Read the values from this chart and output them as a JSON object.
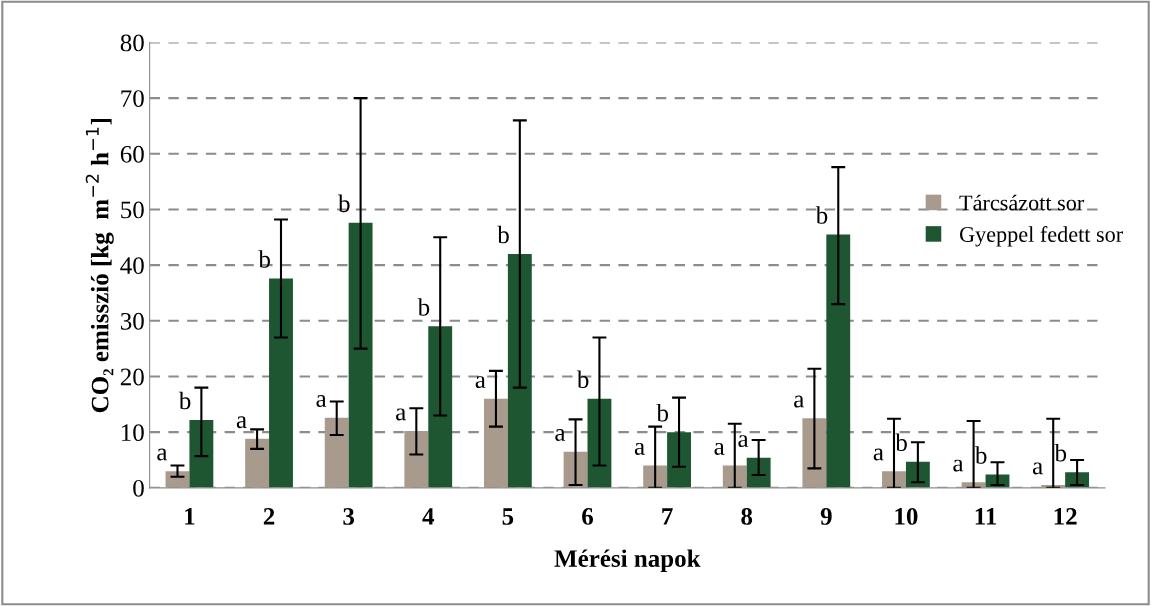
{
  "chart_data": {
    "type": "bar",
    "xlabel": "Mérési napok",
    "ylabel": "CO₂ emisszió [kg  m$^{−2}$ h$^{−1}$]",
    "categories": [
      "1",
      "2",
      "3",
      "4",
      "5",
      "6",
      "7",
      "8",
      "9",
      "10",
      "11",
      "12"
    ],
    "series": [
      {
        "name": "Tárcsázott sor",
        "color": "#a89a8c",
        "values": [
          3,
          8.8,
          12.6,
          10.2,
          16,
          6.5,
          4,
          4,
          12.5,
          3,
          1,
          0.5
        ],
        "errors": [
          [
            2,
            4
          ],
          [
            7,
            10.5
          ],
          [
            9.5,
            15.5
          ],
          [
            6,
            14.3
          ],
          [
            11,
            21
          ],
          [
            0.5,
            12.3
          ],
          [
            0,
            11
          ],
          [
            0,
            11.5
          ],
          [
            3.5,
            21.4
          ],
          [
            0,
            12.4
          ],
          [
            0,
            12
          ],
          [
            0,
            12.4
          ]
        ],
        "value_labels": [
          "a",
          "a",
          "a",
          "a",
          "a",
          "a",
          "a",
          "a",
          "a",
          "a",
          "a",
          "a"
        ]
      },
      {
        "name": "Gyeppel fedett sor",
        "color": "#1e5631",
        "values": [
          12.2,
          37.6,
          47.6,
          29,
          42,
          16,
          10,
          5.4,
          45.5,
          4.7,
          2.4,
          2.8
        ],
        "errors": [
          [
            5.7,
            18
          ],
          [
            27,
            48.2
          ],
          [
            25,
            70
          ],
          [
            13,
            45
          ],
          [
            18,
            66
          ],
          [
            4,
            27
          ],
          [
            3.8,
            16.2
          ],
          [
            2.3,
            8.6
          ],
          [
            33,
            57.6
          ],
          [
            1,
            8.2
          ],
          [
            0.5,
            4.6
          ],
          [
            0.5,
            5
          ]
        ],
        "value_labels": [
          "b",
          "b",
          "b",
          "b",
          "b",
          "b",
          "b",
          "a",
          "b",
          "b",
          "b",
          "b"
        ]
      }
    ],
    "ylim": [
      0,
      80
    ],
    "yticks": [
      0,
      10,
      20,
      30,
      40,
      50,
      60,
      70,
      80
    ],
    "grid": "y",
    "legend": "right"
  }
}
